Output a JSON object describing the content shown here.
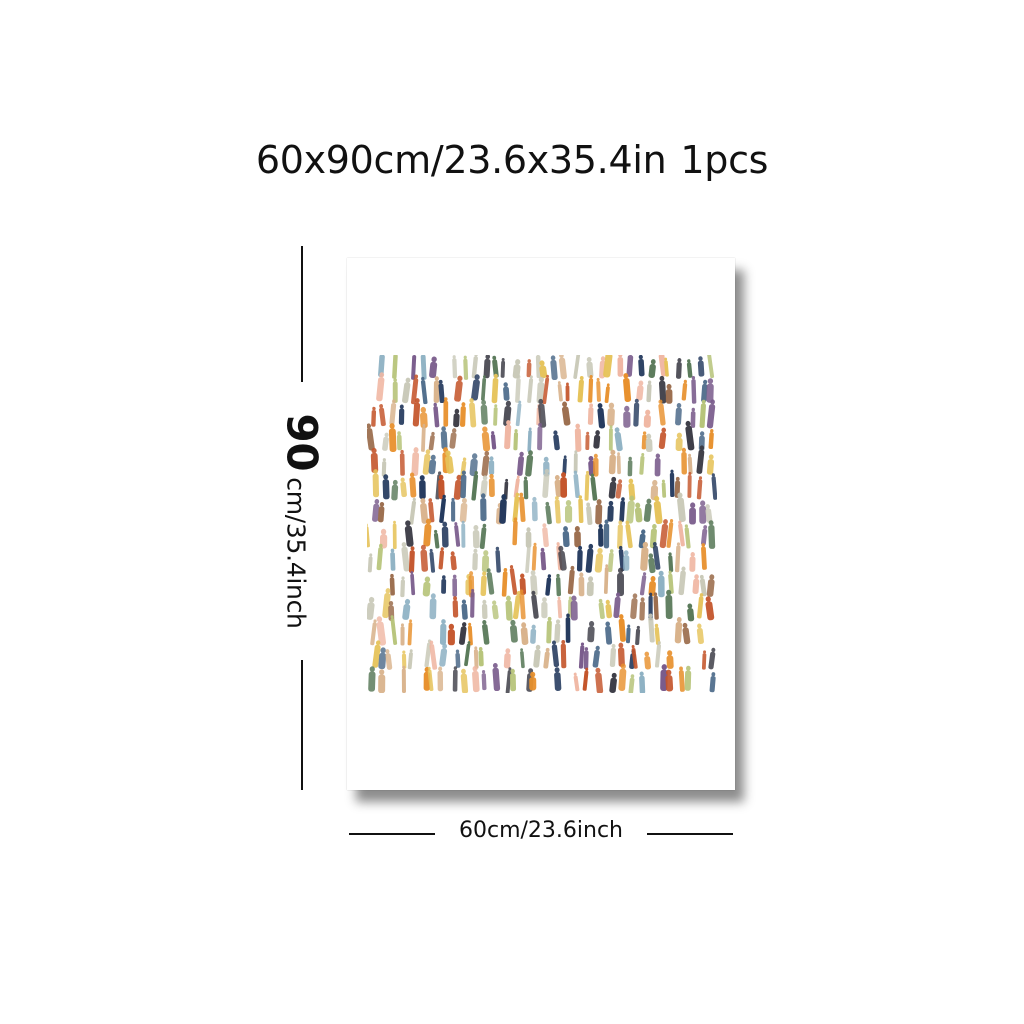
{
  "title": {
    "size": "60x90cm/23.6x35.4in",
    "quantity": "1pcs"
  },
  "dimensions": {
    "height_number": "90",
    "height_unit": "cm/35.4inch",
    "width_label": "60cm/23.6inch"
  },
  "artwork": {
    "subject": "crowd of small colorful figures",
    "palette": [
      "#e8912e",
      "#c4542a",
      "#23395d",
      "#4d6b8a",
      "#8fb2c4",
      "#b7c47a",
      "#d9b38c",
      "#7a5c8c",
      "#e6c35a",
      "#9a6b4a",
      "#f0b7a3",
      "#5a7a5a",
      "#c9c9b8",
      "#3c3c46"
    ]
  }
}
